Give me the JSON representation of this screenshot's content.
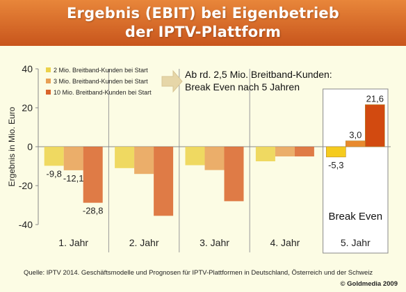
{
  "title": {
    "line1": "Ergebnis (EBIT) bei Eigenbetrieb",
    "line2": "der IPTV-Plattform"
  },
  "colors": {
    "series1": "#ecd24a",
    "series2": "#e8a055",
    "series3": "#d9642a",
    "highlight1": "#f5cb1e",
    "highlight2": "#e88a2e",
    "highlight3": "#d24a10",
    "title_bar": "#d0621f",
    "background": "#fcfce4"
  },
  "chart_data": {
    "type": "bar",
    "ylabel": "Ergebnis in Mio. Euro",
    "ylim": [
      -40,
      40
    ],
    "yticks": [
      -40,
      -20,
      0,
      20,
      40
    ],
    "categories": [
      "1. Jahr",
      "2. Jahr",
      "3. Jahr",
      "4. Jahr",
      "5. Jahr"
    ],
    "series": [
      {
        "name": "2 Mio. Breitband-Kunden bei Start",
        "values": [
          -9.8,
          -11,
          -9.5,
          -7.5,
          -5.3
        ]
      },
      {
        "name": "3 Mio. Breitband-Kunden bei Start",
        "values": [
          -12.1,
          -14,
          -12,
          -5,
          3.0
        ]
      },
      {
        "name": "10 Mio. Breitband-Kunden bei Start",
        "values": [
          -28.8,
          -35.5,
          -28,
          -5,
          21.6
        ]
      }
    ],
    "data_labels": [
      {
        "category": 0,
        "series": 0,
        "text": "-9,8"
      },
      {
        "category": 0,
        "series": 1,
        "text": "-12,1"
      },
      {
        "category": 0,
        "series": 2,
        "text": "-28,8"
      },
      {
        "category": 4,
        "series": 0,
        "text": "-5,3"
      },
      {
        "category": 4,
        "series": 1,
        "text": "3,0"
      },
      {
        "category": 4,
        "series": 2,
        "text": "21,6"
      }
    ],
    "highlight_category": 4,
    "legend_position": "top-left",
    "annotation": {
      "line1": "Ab rd. 2,5 Mio. Breitband-Kunden:",
      "line2": "Break Even nach 5 Jahren"
    },
    "highlight_label": "Break Even",
    "grid": false
  },
  "footer": {
    "source": "Quelle: IPTV 2014. Geschäftsmodelle und Prognosen für IPTV-Plattformen in Deutschland, Österreich und der  Schweiz",
    "copyright": "© Goldmedia 2009"
  }
}
